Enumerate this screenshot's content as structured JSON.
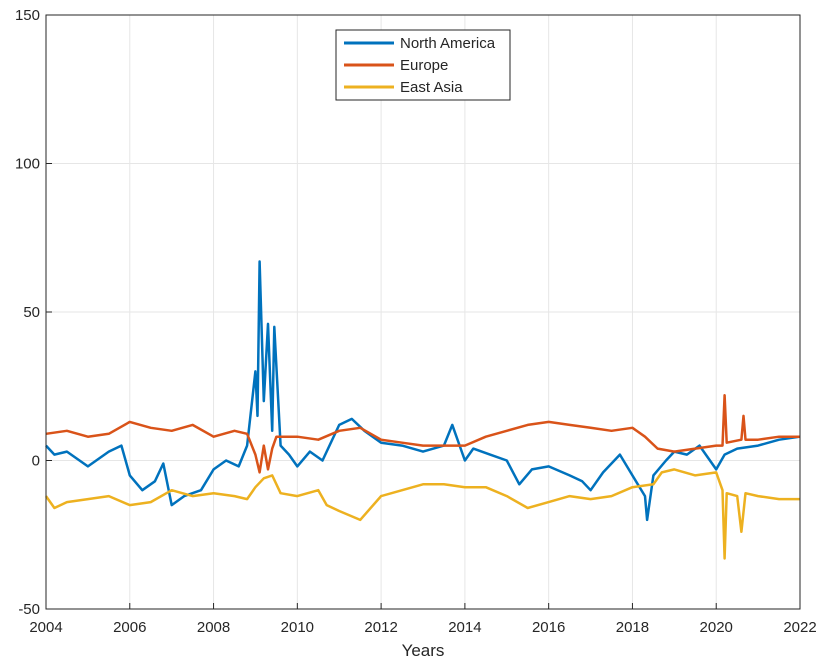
{
  "chart_data": {
    "type": "line",
    "xlabel": "Years",
    "xlim": [
      2004,
      2022
    ],
    "xticks": [
      2004,
      2006,
      2008,
      2010,
      2012,
      2014,
      2016,
      2018,
      2020,
      2022
    ],
    "ylim": [
      -50,
      150
    ],
    "yticks": [
      -50,
      0,
      50,
      100,
      150
    ],
    "grid": true,
    "legend": "north",
    "series": [
      {
        "name": "North America",
        "color": "#0072BD",
        "x": [
          2004,
          2004.2,
          2004.5,
          2005,
          2005.5,
          2005.8,
          2006,
          2006.3,
          2006.6,
          2006.8,
          2007,
          2007.3,
          2007.7,
          2008,
          2008.3,
          2008.6,
          2008.8,
          2009,
          2009.05,
          2009.1,
          2009.2,
          2009.3,
          2009.4,
          2009.45,
          2009.6,
          2009.8,
          2010,
          2010.3,
          2010.6,
          2011,
          2011.3,
          2011.6,
          2012,
          2012.5,
          2013,
          2013.5,
          2013.7,
          2014,
          2014.2,
          2014.6,
          2015,
          2015.3,
          2015.6,
          2016,
          2016.5,
          2016.8,
          2017,
          2017.3,
          2017.7,
          2018,
          2018.3,
          2018.35,
          2018.5,
          2018.8,
          2019,
          2019.3,
          2019.6,
          2020,
          2020.2,
          2020.5,
          2021,
          2021.5,
          2022
        ],
        "values": [
          5,
          2,
          3,
          -2,
          3,
          5,
          -5,
          -10,
          -7,
          -1,
          -15,
          -12,
          -10,
          -3,
          0,
          -2,
          5,
          30,
          15,
          67,
          20,
          46,
          10,
          45,
          5,
          2,
          -2,
          3,
          0,
          12,
          14,
          10,
          6,
          5,
          3,
          5,
          12,
          0,
          4,
          2,
          0,
          -8,
          -3,
          -2,
          -5,
          -7,
          -10,
          -4,
          2,
          -5,
          -12,
          -20,
          -5,
          0,
          3,
          2,
          5,
          -3,
          2,
          4,
          5,
          7,
          8
        ]
      },
      {
        "name": "Europe",
        "color": "#D95319",
        "x": [
          2004,
          2004.5,
          2005,
          2005.5,
          2006,
          2006.5,
          2007,
          2007.5,
          2008,
          2008.5,
          2008.8,
          2009,
          2009.1,
          2009.2,
          2009.3,
          2009.4,
          2009.5,
          2010,
          2010.5,
          2011,
          2011.5,
          2012,
          2012.5,
          2013,
          2014,
          2014.5,
          2015,
          2015.5,
          2016,
          2016.5,
          2017,
          2017.5,
          2018,
          2018.3,
          2018.6,
          2019,
          2019.5,
          2020,
          2020.15,
          2020.2,
          2020.25,
          2020.6,
          2020.65,
          2020.7,
          2021,
          2021.5,
          2022
        ],
        "values": [
          9,
          10,
          8,
          9,
          13,
          11,
          10,
          12,
          8,
          10,
          9,
          2,
          -4,
          5,
          -3,
          4,
          8,
          8,
          7,
          10,
          11,
          7,
          6,
          5,
          5,
          8,
          10,
          12,
          13,
          12,
          11,
          10,
          11,
          8,
          4,
          3,
          4,
          5,
          5,
          22,
          6,
          7,
          15,
          7,
          7,
          8,
          8
        ]
      },
      {
        "name": "East Asia",
        "color": "#EDB120",
        "x": [
          2004,
          2004.2,
          2004.5,
          2005,
          2005.5,
          2006,
          2006.5,
          2007,
          2007.5,
          2008,
          2008.5,
          2008.8,
          2009,
          2009.2,
          2009.4,
          2009.6,
          2010,
          2010.5,
          2010.7,
          2011,
          2011.5,
          2012,
          2012.5,
          2013,
          2013.5,
          2014,
          2014.5,
          2015,
          2015.5,
          2016,
          2016.5,
          2017,
          2017.5,
          2018,
          2018.5,
          2018.7,
          2019,
          2019.5,
          2020,
          2020.15,
          2020.2,
          2020.25,
          2020.5,
          2020.6,
          2020.7,
          2021,
          2021.5,
          2022
        ],
        "values": [
          -12,
          -16,
          -14,
          -13,
          -12,
          -15,
          -14,
          -10,
          -12,
          -11,
          -12,
          -13,
          -9,
          -6,
          -5,
          -11,
          -12,
          -10,
          -15,
          -17,
          -20,
          -12,
          -10,
          -8,
          -8,
          -9,
          -9,
          -12,
          -16,
          -14,
          -12,
          -13,
          -12,
          -9,
          -8,
          -4,
          -3,
          -5,
          -4,
          -10,
          -33,
          -11,
          -12,
          -24,
          -11,
          -12,
          -13,
          -13
        ]
      }
    ]
  }
}
